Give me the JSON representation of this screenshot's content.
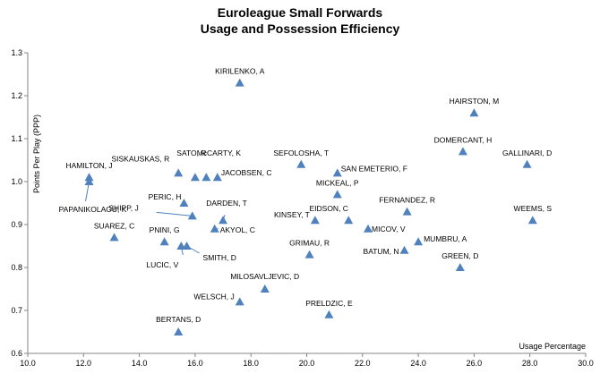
{
  "chart_data": {
    "type": "scatter",
    "title": "Euroleague Small Forwards",
    "subtitle": "Usage and Possession Efficiency",
    "xlabel": "Usage Percentage",
    "ylabel": "Points Per Play (PPP)",
    "xlim": [
      10.0,
      30.0
    ],
    "ylim": [
      0.6,
      1.3
    ],
    "x_ticks": [
      "10.0",
      "12.0",
      "14.0",
      "16.0",
      "18.0",
      "20.0",
      "22.0",
      "24.0",
      "26.0",
      "28.0",
      "30.0"
    ],
    "y_ticks": [
      "0.6",
      "0.7",
      "0.8",
      "0.9",
      "1.0",
      "1.1",
      "1.2",
      "1.3"
    ],
    "grid": false,
    "legend": "none",
    "marker_color": "#4f81bd",
    "points": [
      {
        "label": "KIRILENKO, A",
        "x": 17.6,
        "y": 1.23
      },
      {
        "label": "HAIRSTON, M",
        "x": 26.0,
        "y": 1.16
      },
      {
        "label": "DOMERCANT, H",
        "x": 25.6,
        "y": 1.07
      },
      {
        "label": "GALLINARI, D",
        "x": 27.9,
        "y": 1.04
      },
      {
        "label": "SEFOLOSHA, T",
        "x": 19.8,
        "y": 1.04
      },
      {
        "label": "SAN EMETERIO, F",
        "x": 21.1,
        "y": 1.02
      },
      {
        "label": "SISKAUSKAS, R",
        "x": 15.4,
        "y": 1.02
      },
      {
        "label": "SATO, R",
        "x": 16.0,
        "y": 1.01
      },
      {
        "label": "McCARTY, K",
        "x": 16.4,
        "y": 1.01
      },
      {
        "label": "JACOBSEN, C",
        "x": 16.8,
        "y": 1.01
      },
      {
        "label": "HAMILTON, J",
        "x": 12.2,
        "y": 1.01
      },
      {
        "label": "PAPANIKOLAOU, K",
        "x": 12.2,
        "y": 1.0
      },
      {
        "label": "MICKEAL, P",
        "x": 21.1,
        "y": 0.97
      },
      {
        "label": "PERIC, H",
        "x": 15.6,
        "y": 0.95
      },
      {
        "label": "SHIPP, J",
        "x": 15.9,
        "y": 0.92
      },
      {
        "label": "FERNANDEZ, R",
        "x": 23.6,
        "y": 0.93
      },
      {
        "label": "WEEMS, S",
        "x": 28.1,
        "y": 0.91
      },
      {
        "label": "DARDEN, T",
        "x": 17.0,
        "y": 0.91
      },
      {
        "label": "EIDSON, C",
        "x": 21.5,
        "y": 0.91
      },
      {
        "label": "KINSEY, T",
        "x": 20.3,
        "y": 0.91
      },
      {
        "label": "AKYOL, C",
        "x": 16.7,
        "y": 0.89
      },
      {
        "label": "MICOV, V",
        "x": 22.2,
        "y": 0.89
      },
      {
        "label": "SUAREZ, C",
        "x": 13.1,
        "y": 0.87
      },
      {
        "label": "PNINI, G",
        "x": 14.9,
        "y": 0.86
      },
      {
        "label": "MUMBRU, A",
        "x": 24.0,
        "y": 0.86
      },
      {
        "label": "LUCIC, V",
        "x": 15.5,
        "y": 0.85
      },
      {
        "label": "SMITH, D",
        "x": 15.7,
        "y": 0.85
      },
      {
        "label": "BATUM, N",
        "x": 23.5,
        "y": 0.84
      },
      {
        "label": "GRIMAU, R",
        "x": 20.1,
        "y": 0.83
      },
      {
        "label": "GREEN, D",
        "x": 25.5,
        "y": 0.8
      },
      {
        "label": "MILOSAVLJEVIC, D",
        "x": 18.5,
        "y": 0.75
      },
      {
        "label": "WELSCH, J",
        "x": 17.6,
        "y": 0.72
      },
      {
        "label": "PRELDZIC, E",
        "x": 20.8,
        "y": 0.69
      },
      {
        "label": "BERTANS, D",
        "x": 15.4,
        "y": 0.65
      }
    ]
  }
}
